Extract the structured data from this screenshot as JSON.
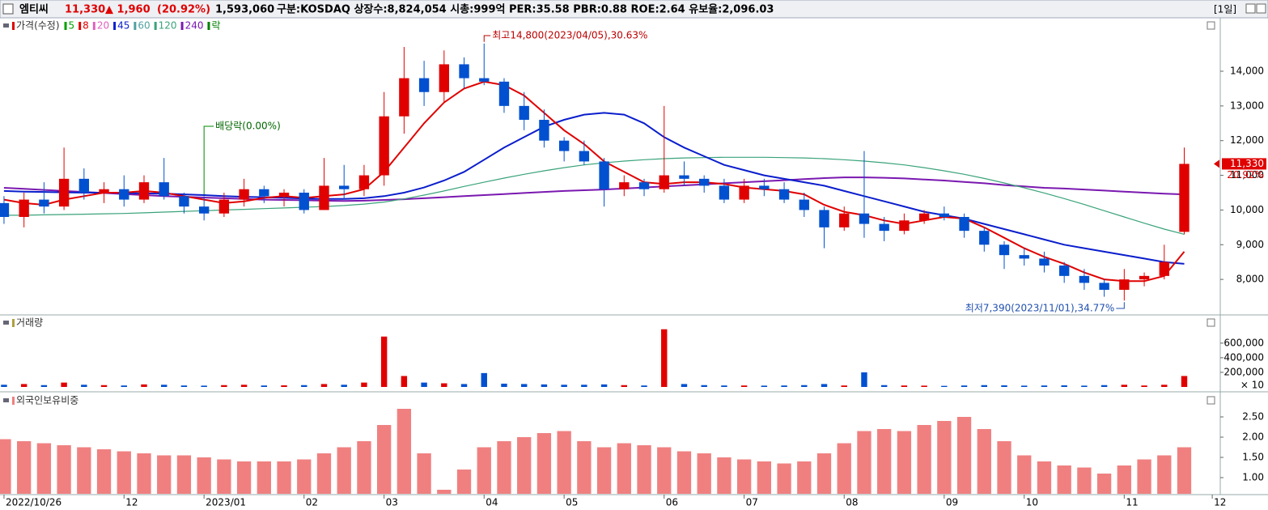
{
  "header": {
    "name": "엠티씨",
    "price": "11,330",
    "change": "▲ 1,960",
    "rate": "(20.92%)",
    "volume": "1,593,060",
    "info": "구분:KOSDAQ 상장수:8,824,054 시총:999억 PER:35.58 PBR:0.88 ROE:2.64 유보율:2,096.03",
    "period": "[1일]"
  },
  "chart_data": [
    {
      "type": "candlestick",
      "title": "가격(수정)",
      "legend": [
        {
          "name": "5",
          "color": "#00a000"
        },
        {
          "name": "8",
          "color": "#e00000"
        },
        {
          "name": "20",
          "color": "#e060c0"
        },
        {
          "name": "45",
          "color": "#0a1ecc"
        },
        {
          "name": "60",
          "color": "#50a0a0"
        },
        {
          "name": "120",
          "color": "#3aa37a"
        },
        {
          "name": "240",
          "color": "#7a18b0"
        },
        {
          "name": "락",
          "color": "#008000"
        }
      ],
      "up_color": "#e00000",
      "down_color": "#0050d0",
      "open": [
        10200,
        9800,
        10300,
        10100,
        10900,
        10500,
        10600,
        10300,
        10800,
        10400,
        10100,
        9900,
        10300,
        10600,
        10400,
        10500,
        10000,
        10700,
        10600,
        11000,
        12700,
        13800,
        13400,
        14200,
        13800,
        13700,
        13000,
        12600,
        12000,
        11700,
        11400,
        10600,
        10800,
        10600,
        11000,
        10900,
        10700,
        10300,
        10700,
        10600,
        10300,
        10000,
        9500,
        9900,
        9600,
        9400,
        9700,
        9900,
        9800,
        9400,
        9000,
        8700,
        8600,
        8400,
        8100,
        7900,
        7700,
        8000,
        8100,
        9370
      ],
      "high": [
        10400,
        10500,
        10800,
        11800,
        11200,
        10800,
        11000,
        11000,
        11500,
        10500,
        10400,
        10500,
        10900,
        10700,
        10600,
        10600,
        11500,
        11300,
        11300,
        13400,
        14700,
        14300,
        14600,
        14400,
        14800,
        13800,
        13400,
        12900,
        12100,
        12000,
        11500,
        11000,
        10900,
        13000,
        11400,
        11000,
        10900,
        10900,
        10900,
        10800,
        10500,
        10100,
        10100,
        11700,
        9800,
        9900,
        10000,
        10100,
        9900,
        9500,
        9100,
        8900,
        8800,
        8500,
        8300,
        8000,
        8300,
        8200,
        9000,
        11800
      ],
      "low": [
        9600,
        9500,
        9900,
        10000,
        10300,
        10200,
        10100,
        10200,
        10300,
        9900,
        9700,
        9800,
        10100,
        10200,
        10100,
        9900,
        10000,
        10300,
        10400,
        10700,
        12200,
        13000,
        13100,
        13500,
        13600,
        12800,
        12300,
        11800,
        11400,
        11300,
        10100,
        10400,
        10400,
        10500,
        10700,
        10500,
        10200,
        10200,
        10400,
        10200,
        9800,
        8900,
        9400,
        9200,
        9100,
        9300,
        9600,
        9700,
        9200,
        8800,
        8300,
        8400,
        8200,
        7900,
        7700,
        7500,
        7390,
        7800,
        8000,
        9300
      ],
      "close": [
        9800,
        10300,
        10100,
        10900,
        10500,
        10600,
        10300,
        10800,
        10400,
        10100,
        9900,
        10300,
        10600,
        10400,
        10500,
        10000,
        10700,
        10600,
        11000,
        12700,
        13800,
        13400,
        14200,
        13800,
        13700,
        13000,
        12600,
        12000,
        11700,
        11400,
        10600,
        10800,
        10600,
        11000,
        10900,
        10700,
        10300,
        10700,
        10600,
        10300,
        10000,
        9500,
        9900,
        9600,
        9400,
        9700,
        9900,
        9800,
        9400,
        9000,
        8700,
        8600,
        8400,
        8100,
        7900,
        7700,
        8000,
        8100,
        8500,
        11330
      ],
      "series": [
        {
          "name": "240",
          "color": "#7a18b0",
          "values": [
            10640,
            10610,
            10580,
            10550,
            10520,
            10490,
            10460,
            10430,
            10400,
            10380,
            10360,
            10340,
            10320,
            10300,
            10290,
            10280,
            10270,
            10260,
            10270,
            10290,
            10310,
            10340,
            10370,
            10400,
            10430,
            10460,
            10490,
            10520,
            10550,
            10570,
            10590,
            10620,
            10650,
            10680,
            10710,
            10740,
            10770,
            10800,
            10830,
            10860,
            10890,
            10920,
            10940,
            10940,
            10930,
            10910,
            10880,
            10850,
            10810,
            10770,
            10720,
            10680,
            10640,
            10620,
            10590,
            10560,
            10530,
            10500,
            10470,
            10450
          ]
        },
        {
          "name": "120",
          "color": "#3aa37a",
          "values": [
            9850,
            9850,
            9860,
            9870,
            9880,
            9890,
            9900,
            9920,
            9940,
            9960,
            9980,
            10000,
            10020,
            10040,
            10060,
            10080,
            10100,
            10130,
            10170,
            10230,
            10320,
            10430,
            10550,
            10680,
            10800,
            10920,
            11030,
            11130,
            11220,
            11300,
            11360,
            11410,
            11450,
            11480,
            11500,
            11510,
            11520,
            11520,
            11520,
            11510,
            11500,
            11480,
            11450,
            11410,
            11360,
            11300,
            11220,
            11130,
            11030,
            10910,
            10780,
            10640,
            10490,
            10330,
            10160,
            9980,
            9800,
            9620,
            9450,
            9300
          ]
        },
        {
          "name": "45",
          "color": "#0a1ecc",
          "values": [
            10550,
            10530,
            10520,
            10510,
            10500,
            10500,
            10490,
            10480,
            10470,
            10450,
            10430,
            10400,
            10380,
            10370,
            10350,
            10330,
            10320,
            10320,
            10340,
            10400,
            10500,
            10650,
            10850,
            11100,
            11450,
            11800,
            12100,
            12400,
            12600,
            12750,
            12800,
            12750,
            12500,
            12100,
            11800,
            11550,
            11300,
            11150,
            11000,
            10900,
            10800,
            10700,
            10550,
            10400,
            10250,
            10100,
            9950,
            9850,
            9750,
            9600,
            9450,
            9300,
            9150,
            9000,
            8900,
            8800,
            8700,
            8600,
            8500,
            8450
          ]
        },
        {
          "name": "8",
          "color": "#e00000",
          "values": [
            10300,
            10200,
            10150,
            10300,
            10400,
            10500,
            10500,
            10550,
            10500,
            10400,
            10300,
            10200,
            10250,
            10350,
            10400,
            10350,
            10400,
            10450,
            10600,
            11100,
            11800,
            12500,
            13100,
            13500,
            13700,
            13600,
            13300,
            12800,
            12300,
            11900,
            11400,
            11100,
            10800,
            10750,
            10800,
            10800,
            10750,
            10650,
            10600,
            10550,
            10450,
            10150,
            9950,
            9850,
            9700,
            9600,
            9700,
            9800,
            9750,
            9500,
            9200,
            8900,
            8650,
            8450,
            8200,
            8000,
            7950,
            7950,
            8100,
            8800
          ]
        }
      ],
      "annotations": [
        "최고14,800(2023/04/05),30.63%",
        "배당락(0.00%)",
        "최저7,390(2023/11/01),34.77%"
      ],
      "last_label": "11,330",
      "last_rate": "20.92%",
      "xlim": [
        -0.2,
        60.8
      ],
      "ylim": [
        7000,
        15540
      ],
      "yticks": [
        {
          "value": 8000,
          "label": "8,000"
        },
        {
          "value": 9000,
          "label": "9,000"
        },
        {
          "value": 10000,
          "label": "10,000"
        },
        {
          "value": 11000,
          "label": "11,000"
        },
        {
          "value": 12000,
          "label": "12,000"
        },
        {
          "value": 13000,
          "label": "13,000"
        },
        {
          "value": 14000,
          "label": "14,000"
        }
      ]
    },
    {
      "type": "volume",
      "title": "거래량",
      "unit": "× 10",
      "up_color": "#e00000",
      "down_color": "#0050d0",
      "values": [
        30000,
        40000,
        25000,
        60000,
        30000,
        25000,
        20000,
        35000,
        30000,
        20000,
        18000,
        25000,
        30000,
        20000,
        22000,
        25000,
        40000,
        30000,
        60000,
        690000,
        150000,
        60000,
        50000,
        40000,
        190000,
        45000,
        40000,
        35000,
        30000,
        30000,
        35000,
        25000,
        20000,
        790000,
        40000,
        25000,
        20000,
        20000,
        18000,
        20000,
        25000,
        40000,
        20000,
        200000,
        25000,
        20000,
        18000,
        15000,
        20000,
        25000,
        22000,
        18000,
        20000,
        22000,
        18000,
        25000,
        30000,
        20000,
        30000,
        150000
      ],
      "xlim": [
        -0.2,
        60.8
      ],
      "ylim": [
        0,
        920000
      ],
      "yticks": [
        {
          "value": 200000,
          "label": "200,000"
        },
        {
          "value": 400000,
          "label": "400,000"
        },
        {
          "value": 600000,
          "label": "600,000"
        }
      ]
    },
    {
      "type": "bar",
      "title": "외국인보유비중",
      "color": "#f08080",
      "values": [
        1.95,
        1.9,
        1.85,
        1.8,
        1.75,
        1.7,
        1.65,
        1.6,
        1.55,
        1.55,
        1.5,
        1.45,
        1.4,
        1.4,
        1.4,
        1.45,
        1.6,
        1.75,
        1.9,
        2.3,
        2.7,
        1.6,
        0.7,
        1.2,
        1.75,
        1.9,
        2.0,
        2.1,
        2.15,
        1.9,
        1.75,
        1.85,
        1.8,
        1.75,
        1.65,
        1.6,
        1.5,
        1.45,
        1.4,
        1.35,
        1.4,
        1.6,
        1.85,
        2.15,
        2.2,
        2.15,
        2.3,
        2.4,
        2.5,
        2.2,
        1.9,
        1.55,
        1.4,
        1.3,
        1.25,
        1.1,
        1.3,
        1.45,
        1.55,
        1.75
      ],
      "xlim": [
        -0.2,
        60.8
      ],
      "ylim": [
        0.6,
        3.0
      ],
      "yticks": [
        {
          "value": 1.0,
          "label": "1.00"
        },
        {
          "value": 1.5,
          "label": "1.50"
        },
        {
          "value": 2.0,
          "label": "2.00"
        },
        {
          "value": 2.5,
          "label": "2.50"
        }
      ],
      "xticks": [
        {
          "value": 0,
          "label": "2022/10/26"
        },
        {
          "value": 6,
          "label": "12"
        },
        {
          "value": 10,
          "label": "2023/01"
        },
        {
          "value": 15,
          "label": "02"
        },
        {
          "value": 19,
          "label": "03"
        },
        {
          "value": 24,
          "label": "04"
        },
        {
          "value": 28,
          "label": "05"
        },
        {
          "value": 33,
          "label": "06"
        },
        {
          "value": 37,
          "label": "07"
        },
        {
          "value": 42,
          "label": "08"
        },
        {
          "value": 47,
          "label": "09"
        },
        {
          "value": 51,
          "label": "10"
        },
        {
          "value": 56,
          "label": "11"
        },
        {
          "value": 60.4,
          "label": "12"
        }
      ]
    }
  ]
}
